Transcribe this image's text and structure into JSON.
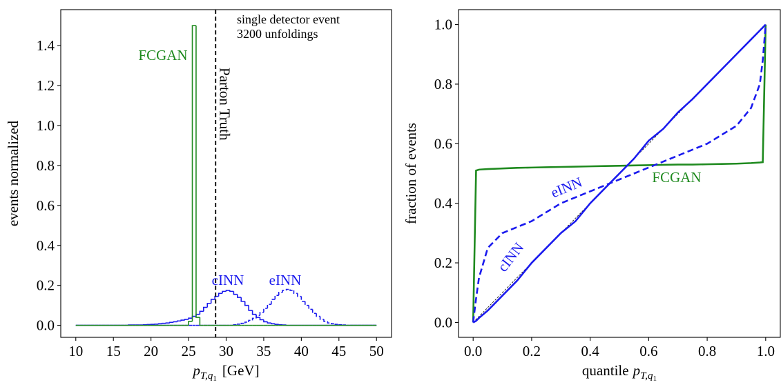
{
  "chart_data": [
    {
      "type": "histogram",
      "x_label": {
        "symbol": "p",
        "subscript": "T,q",
        "subsubscript": "1",
        "unit": "[GeV]"
      },
      "y_label": "events normalized",
      "xlim": [
        8,
        52
      ],
      "ylim": [
        -0.06,
        1.58
      ],
      "xticks": [
        10,
        15,
        20,
        25,
        30,
        35,
        40,
        45,
        50
      ],
      "yticks": [
        {
          "value": 0,
          "label": "0.0"
        },
        0.2,
        0.4,
        0.6,
        0.8,
        {
          "value": 1,
          "label": "1.0"
        },
        1.2,
        1.4
      ],
      "annotations": [
        "single detector event",
        "3200 unfoldings"
      ],
      "reference_line": {
        "x": 28.6,
        "label": "Parton Truth",
        "color": "#000000",
        "dashed": true
      },
      "bins": [
        10,
        10.5,
        11,
        11.5,
        12,
        12.5,
        13,
        13.5,
        14,
        14.5,
        15,
        15.5,
        16,
        16.5,
        17,
        17.5,
        18,
        18.5,
        19,
        19.5,
        20,
        20.5,
        21,
        21.5,
        22,
        22.5,
        23,
        23.5,
        24,
        24.5,
        25,
        25.5,
        26,
        26.5,
        27,
        27.5,
        28,
        28.5,
        29,
        29.5,
        30,
        30.5,
        31,
        31.5,
        32,
        32.5,
        33,
        33.5,
        34,
        34.5,
        35,
        35.5,
        36,
        36.5,
        37,
        37.5,
        38,
        38.5,
        39,
        39.5,
        40,
        40.5,
        41,
        41.5,
        42,
        42.5,
        43,
        43.5,
        44,
        44.5,
        45,
        45.5,
        46,
        46.5,
        47,
        47.5,
        48,
        48.5,
        49,
        49.5,
        50
      ],
      "series": [
        {
          "name": "cINN",
          "color": "#1a1aee",
          "dashed": false,
          "values": [
            0,
            0,
            0,
            0,
            0,
            0,
            0,
            0,
            0,
            0,
            0,
            0,
            0,
            0,
            0.002,
            0.002,
            0.002,
            0.002,
            0.003,
            0.004,
            0.005,
            0.006,
            0.008,
            0.01,
            0.012,
            0.015,
            0.018,
            0.022,
            0.026,
            0.03,
            0.036,
            0.045,
            0.055,
            0.07,
            0.09,
            0.11,
            0.13,
            0.145,
            0.16,
            0.17,
            0.175,
            0.17,
            0.155,
            0.14,
            0.12,
            0.1,
            0.075,
            0.055,
            0.04,
            0.028,
            0.018,
            0.012,
            0.008,
            0.005,
            0.003,
            0.002,
            0,
            0,
            0,
            0,
            0,
            0,
            0,
            0,
            0,
            0,
            0,
            0,
            0,
            0,
            0,
            0,
            0,
            0,
            0,
            0,
            0,
            0,
            0,
            0
          ]
        },
        {
          "name": "eINN",
          "color": "#1a1aee",
          "dashed": true,
          "values": [
            0,
            0,
            0,
            0,
            0,
            0,
            0,
            0,
            0,
            0,
            0,
            0,
            0,
            0,
            0,
            0,
            0,
            0,
            0,
            0,
            0,
            0,
            0,
            0,
            0,
            0,
            0,
            0,
            0,
            0,
            0,
            0,
            0,
            0,
            0,
            0,
            0,
            0,
            0,
            0,
            0,
            0,
            0.003,
            0.006,
            0.01,
            0.016,
            0.025,
            0.035,
            0.05,
            0.065,
            0.085,
            0.105,
            0.13,
            0.15,
            0.165,
            0.175,
            0.18,
            0.175,
            0.16,
            0.145,
            0.12,
            0.1,
            0.08,
            0.06,
            0.045,
            0.03,
            0.02,
            0.012,
            0.008,
            0.005,
            0.003,
            0.002,
            0,
            0,
            0,
            0,
            0,
            0,
            0,
            0
          ]
        },
        {
          "name": "FCGAN",
          "color": "#1f8a1f",
          "dashed": false,
          "values": [
            0,
            0,
            0,
            0,
            0,
            0,
            0,
            0,
            0,
            0,
            0,
            0,
            0,
            0,
            0,
            0,
            0,
            0,
            0,
            0,
            0,
            0,
            0,
            0,
            0,
            0,
            0,
            0,
            0,
            0,
            0.02,
            1.5,
            0.04,
            0,
            0,
            0,
            0,
            0,
            0,
            0,
            0,
            0,
            0,
            0,
            0,
            0,
            0,
            0,
            0,
            0,
            0,
            0,
            0,
            0,
            0,
            0,
            0,
            0,
            0,
            0,
            0,
            0,
            0,
            0,
            0,
            0,
            0,
            0,
            0,
            0,
            0,
            0,
            0,
            0,
            0,
            0,
            0,
            0,
            0,
            0
          ]
        }
      ]
    },
    {
      "type": "line",
      "x_label": {
        "prefix": "quantile",
        "symbol": "p",
        "subscript": "T,q",
        "subsubscript": "1"
      },
      "y_label": "fraction of events",
      "xlim": [
        -0.05,
        1.05
      ],
      "ylim": [
        -0.05,
        1.05
      ],
      "xticks": [
        {
          "value": 0,
          "label": "0.0"
        },
        0.2,
        0.4,
        0.6,
        0.8,
        {
          "value": 1,
          "label": "1.0"
        }
      ],
      "yticks": [
        {
          "value": 0,
          "label": "0.0"
        },
        0.2,
        0.4,
        0.6,
        0.8,
        {
          "value": 1,
          "label": "1.0"
        }
      ],
      "reference_diagonal": true,
      "x": [
        0,
        0.01,
        0.02,
        0.05,
        0.1,
        0.15,
        0.2,
        0.25,
        0.3,
        0.35,
        0.4,
        0.45,
        0.5,
        0.55,
        0.6,
        0.65,
        0.7,
        0.75,
        0.8,
        0.85,
        0.9,
        0.95,
        0.98,
        0.99,
        1.0
      ],
      "series": [
        {
          "name": "FCGAN",
          "color": "#1f8a1f",
          "dashed": false,
          "values": [
            0,
            0.51,
            0.513,
            0.515,
            0.517,
            0.519,
            0.52,
            0.521,
            0.522,
            0.523,
            0.524,
            0.525,
            0.526,
            0.527,
            0.528,
            0.529,
            0.53,
            0.53,
            0.531,
            0.532,
            0.533,
            0.535,
            0.537,
            0.538,
            1.0
          ]
        },
        {
          "name": "eINN",
          "color": "#1a1aee",
          "dashed": true,
          "values": [
            0,
            0.08,
            0.15,
            0.25,
            0.3,
            0.32,
            0.34,
            0.37,
            0.4,
            0.42,
            0.44,
            0.46,
            0.48,
            0.5,
            0.52,
            0.54,
            0.56,
            0.58,
            0.6,
            0.63,
            0.66,
            0.72,
            0.8,
            0.88,
            1.0
          ]
        },
        {
          "name": "cINN",
          "color": "#1a1aee",
          "dashed": false,
          "values": [
            0,
            0.005,
            0.015,
            0.04,
            0.09,
            0.14,
            0.2,
            0.25,
            0.3,
            0.34,
            0.4,
            0.45,
            0.5,
            0.55,
            0.61,
            0.65,
            0.705,
            0.75,
            0.8,
            0.85,
            0.9,
            0.95,
            0.98,
            0.99,
            1.0
          ]
        }
      ]
    }
  ]
}
